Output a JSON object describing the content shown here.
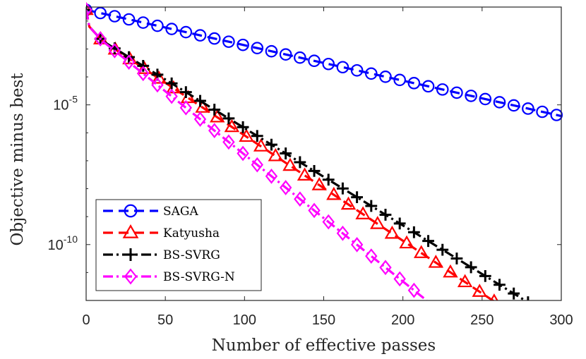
{
  "chart_data": {
    "type": "line",
    "title": "",
    "xlabel": "Number of effective passes",
    "ylabel": "Objective minus best",
    "xlim": [
      0,
      300
    ],
    "ylim_log10": [
      -12,
      -1.5
    ],
    "yscale": "log",
    "xticks": [
      0,
      50,
      100,
      150,
      200,
      250,
      300
    ],
    "xtick_labels": [
      "0",
      "50",
      "100",
      "150",
      "200",
      "250",
      "300"
    ],
    "yticks_log10": [
      -5,
      -10
    ],
    "ytick_labels": [
      {
        "base": "10",
        "exp": "-5"
      },
      {
        "base": "10",
        "exp": "-10"
      }
    ],
    "legend": {
      "position": "bottom-left"
    },
    "series": [
      {
        "name": "SAGA",
        "color": "#0000ff",
        "dash": "dashed",
        "marker": "circle",
        "x": [
          0,
          300
        ],
        "log10_y": [
          -1.6,
          -5.4
        ],
        "marker_step": 9
      },
      {
        "name": "Katyusha",
        "color": "#ff0000",
        "dash": "dashed",
        "marker": "triangle",
        "x": [
          0,
          2,
          10,
          262
        ],
        "log10_y": [
          -1.6,
          -2.2,
          -2.7,
          -12.2
        ],
        "marker_step": 9.2
      },
      {
        "name": "BS-SVRG",
        "color": "#000000",
        "dash": "dashdot",
        "marker": "plus",
        "x": [
          0,
          2,
          10,
          280
        ],
        "log10_y": [
          -1.6,
          -2.2,
          -2.7,
          -12.1
        ],
        "marker_step": 9
      },
      {
        "name": "BS-SVRG-N",
        "color": "#ff00ff",
        "dash": "dashdot",
        "marker": "diamond",
        "x": [
          0,
          2,
          10,
          215
        ],
        "log10_y": [
          -1.6,
          -2.2,
          -2.7,
          -12.0
        ],
        "marker_step": 9
      }
    ]
  }
}
